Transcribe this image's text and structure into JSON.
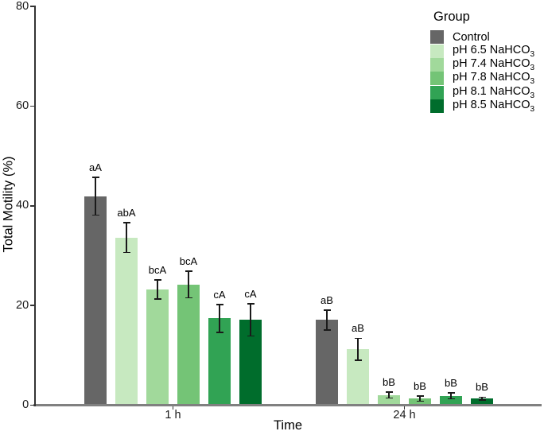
{
  "chart_data": {
    "type": "bar",
    "title": "",
    "xlabel": "Time",
    "ylabel": "Total Motility (%)",
    "ylim": [
      0,
      80
    ],
    "yticks": [
      0,
      20,
      40,
      60,
      80
    ],
    "categories": [
      "1 h",
      "24 h"
    ],
    "grid": false,
    "legend_title": "Group",
    "legend_position": "top-right",
    "error_bar_color": "#1a1a1a",
    "series": [
      {
        "name": "Control",
        "color": "#666666",
        "values": [
          41.9,
          17.1
        ],
        "errors": [
          3.8,
          2.0
        ],
        "sig_labels": [
          "aA",
          "aB"
        ]
      },
      {
        "name": "pH 6.5 NaHCO3",
        "color": "#c7e9c0",
        "values": [
          33.6,
          11.2
        ],
        "errors": [
          3.0,
          2.2
        ],
        "sig_labels": [
          "abA",
          "aB"
        ]
      },
      {
        "name": "pH 7.4 NaHCO3",
        "color": "#a1d99b",
        "values": [
          23.2,
          2.0
        ],
        "errors": [
          1.9,
          0.6
        ],
        "sig_labels": [
          "bcA",
          "bB"
        ]
      },
      {
        "name": "pH 7.8 NaHCO3",
        "color": "#74c476",
        "values": [
          24.2,
          1.3
        ],
        "errors": [
          2.7,
          0.5
        ],
        "sig_labels": [
          "bcA",
          "bB"
        ]
      },
      {
        "name": "pH 8.1 NaHCO3",
        "color": "#31a354",
        "values": [
          17.4,
          1.9
        ],
        "errors": [
          2.8,
          0.6
        ],
        "sig_labels": [
          "cA",
          "bB"
        ]
      },
      {
        "name": "pH 8.5 NaHCO3",
        "color": "#006d2c",
        "values": [
          17.1,
          1.3
        ],
        "errors": [
          3.2,
          0.3
        ],
        "sig_labels": [
          "cA",
          "bB"
        ]
      }
    ]
  },
  "legend": {
    "title": "Group",
    "items": [
      {
        "text": "Control",
        "sub": "",
        "color": "#666666"
      },
      {
        "text": "pH 6.5 NaHCO",
        "sub": "3",
        "color": "#c7e9c0"
      },
      {
        "text": "pH 7.4 NaHCO",
        "sub": "3",
        "color": "#a1d99b"
      },
      {
        "text": "pH 7.8 NaHCO",
        "sub": "3",
        "color": "#74c476"
      },
      {
        "text": "pH 8.1 NaHCO",
        "sub": "3",
        "color": "#31a354"
      },
      {
        "text": "pH 8.5 NaHCO",
        "sub": "3",
        "color": "#006d2c"
      }
    ]
  },
  "style": {
    "x_axis_line_color": "#808080",
    "y_axis_line_color": "#333333",
    "background": "#ffffff"
  }
}
